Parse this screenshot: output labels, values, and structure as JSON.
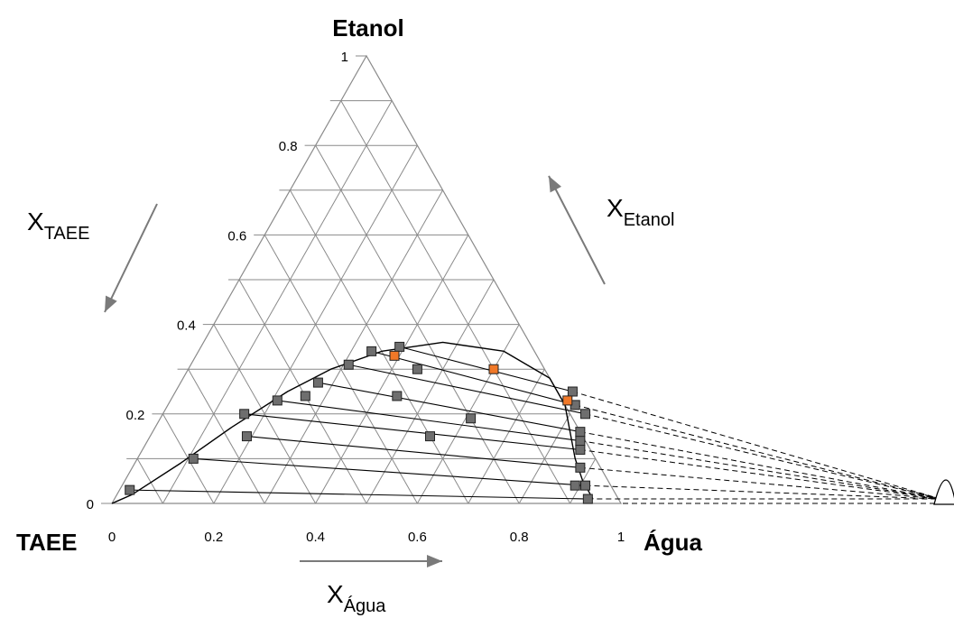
{
  "chart_data": {
    "type": "scatter",
    "subtype": "ternary",
    "vertices": {
      "top": "Etanol",
      "left": "TAEE",
      "right": "Água"
    },
    "axes": {
      "x_agua": {
        "label": "X",
        "subscript": "Água",
        "ticks": [
          "0",
          "0.2",
          "0.4",
          "0.6",
          "0.8",
          "1"
        ]
      },
      "x_taee": {
        "label": "X",
        "subscript": "TAEE",
        "ticks": [
          "0",
          "0.2",
          "0.4",
          "0.6",
          "0.8",
          "1"
        ]
      },
      "x_etanol": {
        "label": "X",
        "subscript": "Etanol"
      }
    },
    "grid_divisions": 10,
    "binodal_curve": [
      {
        "water": 0.0,
        "ethanol": 0.0
      },
      {
        "water": 0.03,
        "ethanol": 0.02
      },
      {
        "water": 0.09,
        "ethanol": 0.09
      },
      {
        "water": 0.15,
        "ethanol": 0.17
      },
      {
        "water": 0.22,
        "ethanol": 0.25
      },
      {
        "water": 0.28,
        "ethanol": 0.3
      },
      {
        "water": 0.36,
        "ethanol": 0.34
      },
      {
        "water": 0.47,
        "ethanol": 0.36
      },
      {
        "water": 0.6,
        "ethanol": 0.34
      },
      {
        "water": 0.72,
        "ethanol": 0.28
      },
      {
        "water": 0.78,
        "ethanol": 0.22
      },
      {
        "water": 0.82,
        "ethanol": 0.16
      },
      {
        "water": 0.86,
        "ethanol": 0.1
      },
      {
        "water": 0.9,
        "ethanol": 0.05
      },
      {
        "water": 0.94,
        "ethanol": 0.01
      }
    ],
    "tie_lines": [
      {
        "org": {
          "water": 0.02,
          "ethanol": 0.03
        },
        "aq": {
          "water": 0.93,
          "ethanol": 0.01
        }
      },
      {
        "org": {
          "water": 0.11,
          "ethanol": 0.1
        },
        "aq": {
          "water": 0.91,
          "ethanol": 0.04
        }
      },
      {
        "org": {
          "water": 0.19,
          "ethanol": 0.15
        },
        "aq": {
          "water": 0.88,
          "ethanol": 0.08
        }
      },
      {
        "org": {
          "water": 0.16,
          "ethanol": 0.2
        },
        "aq": {
          "water": 0.86,
          "ethanol": 0.12
        }
      },
      {
        "org": {
          "water": 0.21,
          "ethanol": 0.23
        },
        "aq": {
          "water": 0.85,
          "ethanol": 0.14
        }
      },
      {
        "org": {
          "water": 0.27,
          "ethanol": 0.27
        },
        "aq": {
          "water": 0.84,
          "ethanol": 0.16
        }
      },
      {
        "org": {
          "water": 0.31,
          "ethanol": 0.31
        },
        "aq": {
          "water": 0.83,
          "ethanol": 0.2
        }
      },
      {
        "org": {
          "water": 0.34,
          "ethanol": 0.34
        },
        "aq": {
          "water": 0.8,
          "ethanol": 0.22
        }
      },
      {
        "org": {
          "water": 0.39,
          "ethanol": 0.35
        },
        "aq": {
          "water": 0.78,
          "ethanol": 0.25
        }
      }
    ],
    "feed_points": [
      {
        "water": 0.89,
        "ethanol": 0.04
      },
      {
        "water": 0.55,
        "ethanol": 0.15
      },
      {
        "water": 0.61,
        "ethanol": 0.19
      },
      {
        "water": 0.44,
        "ethanol": 0.24
      },
      {
        "water": 0.26,
        "ethanol": 0.24
      },
      {
        "water": 0.45,
        "ethanol": 0.3
      }
    ],
    "highlight_points": [
      {
        "water": 0.39,
        "ethanol": 0.33
      },
      {
        "water": 0.6,
        "ethanol": 0.3
      },
      {
        "water": 0.78,
        "ethanol": 0.23
      }
    ],
    "colors": {
      "grid": "#8a8a8a",
      "marker": "#6e6e6e",
      "highlight": "#f07828",
      "line": "#000000",
      "arrow": "#7a7a7a"
    }
  }
}
